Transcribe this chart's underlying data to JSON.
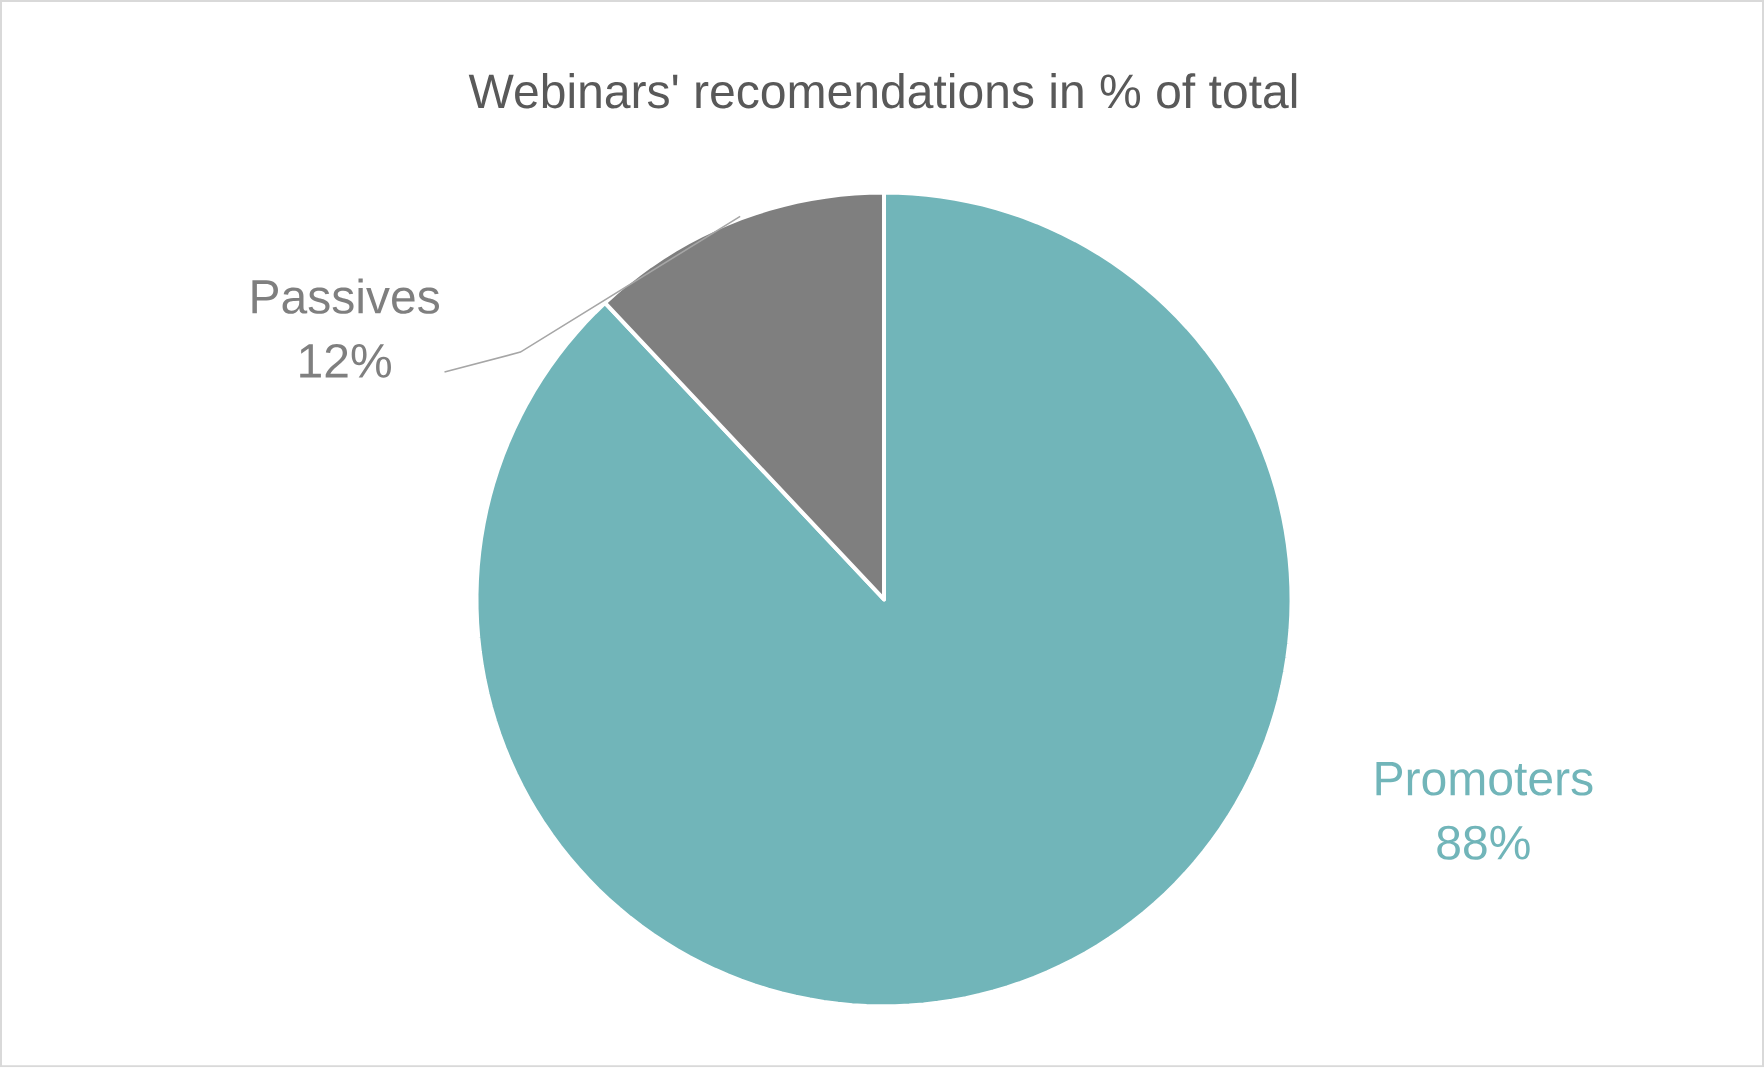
{
  "chart_data": {
    "type": "pie",
    "title": "Webinars' recomendations in % of total",
    "categories": [
      "Promoters",
      "Passives"
    ],
    "values": [
      88,
      12
    ],
    "value_labels": [
      "88%",
      "12%"
    ],
    "colors": [
      "#71b5b9",
      "#7f7f7f"
    ]
  }
}
